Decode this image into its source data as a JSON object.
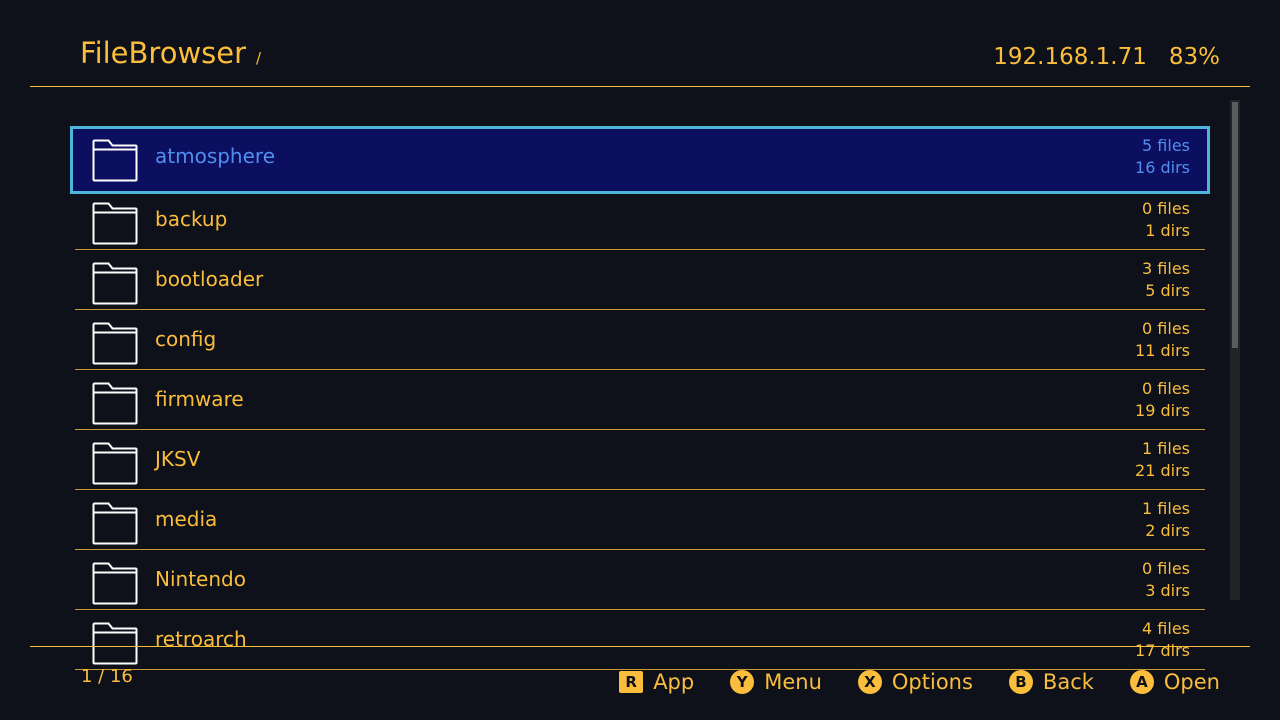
{
  "header": {
    "title": "FileBrowser",
    "path": "/",
    "ip": "192.168.1.71",
    "battery": "83%"
  },
  "colors": {
    "accent": "#fbbd3c",
    "background": "#0e1119",
    "selected_bg": "#0c0f5f",
    "selected_border": "#4cb5d8",
    "selected_text": "#4f8ff0"
  },
  "items": [
    {
      "name": "atmosphere",
      "files": "5 files",
      "dirs": "16 dirs",
      "icon": "folder-icon",
      "selected": true
    },
    {
      "name": "backup",
      "files": "0 files",
      "dirs": "1 dirs",
      "icon": "folder-icon"
    },
    {
      "name": "bootloader",
      "files": "3 files",
      "dirs": "5 dirs",
      "icon": "folder-icon"
    },
    {
      "name": "config",
      "files": "0 files",
      "dirs": "11 dirs",
      "icon": "folder-icon"
    },
    {
      "name": "firmware",
      "files": "0 files",
      "dirs": "19 dirs",
      "icon": "folder-icon"
    },
    {
      "name": "JKSV",
      "files": "1 files",
      "dirs": "21 dirs",
      "icon": "folder-icon"
    },
    {
      "name": "media",
      "files": "1 files",
      "dirs": "2 dirs",
      "icon": "folder-icon"
    },
    {
      "name": "Nintendo",
      "files": "0 files",
      "dirs": "3 dirs",
      "icon": "folder-icon"
    },
    {
      "name": "retroarch",
      "files": "4 files",
      "dirs": "17 dirs",
      "icon": "folder-icon"
    }
  ],
  "footer": {
    "page": "1 / 16",
    "hints": [
      {
        "button": "R",
        "label": "App"
      },
      {
        "button": "Y",
        "label": "Menu"
      },
      {
        "button": "X",
        "label": "Options"
      },
      {
        "button": "B",
        "label": "Back"
      },
      {
        "button": "A",
        "label": "Open"
      }
    ]
  }
}
